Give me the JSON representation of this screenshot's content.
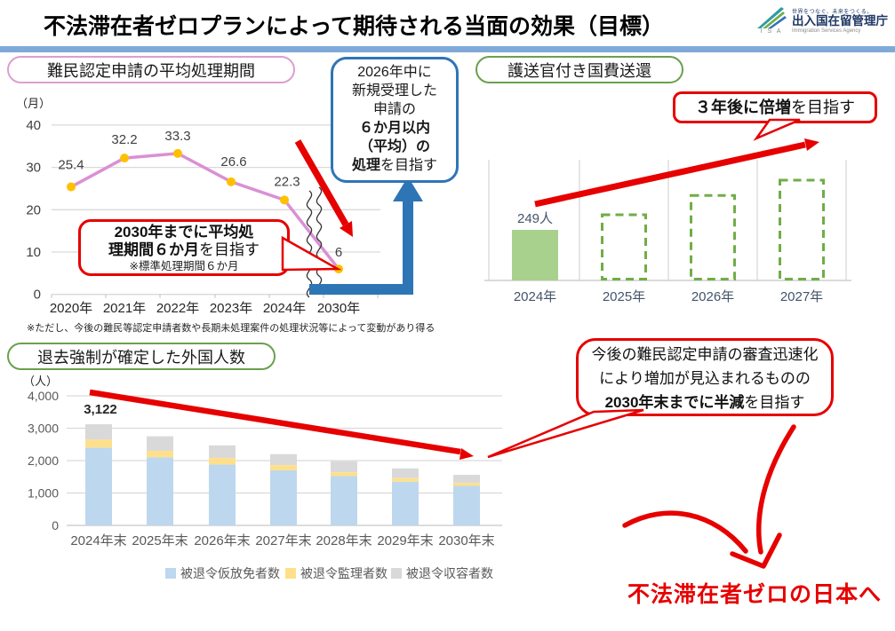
{
  "colors": {
    "accent_red": "#e60000",
    "accent_blue": "#2e75b6",
    "divider_blue": "#7fa9d8",
    "pink_border": "#dd9ed0",
    "green_border": "#6aa04e",
    "line_pink": "#da90d5",
    "marker_orange": "#ffc000",
    "bar_green": "#a9d18e",
    "bar_green_border": "#70ad47",
    "stack_blue": "#bdd7ee",
    "stack_yellow": "#ffe08a",
    "stack_gray": "#d9d9d9",
    "label_navy": "#44546a"
  },
  "header": {
    "title": "不法滞在者ゼロプランによって期待される当面の効果（目標）",
    "logo": {
      "isa": "I S A",
      "tagline": "世界をつなぐ、未来をつくる。",
      "agency_ja": "出入国在留管理庁",
      "agency_en": "Immigration Services Agency"
    }
  },
  "refugee": {
    "header": "難民認定申請の平均処理期間",
    "unit": "（月）",
    "note": "※ただし、今後の難民等認定申請者数や長期未処理案件の処理状況等によって変動があり得る",
    "callout": {
      "line1_bold": "2030年までに平均処",
      "line2_bold": "理期間６か月",
      "line2_rest": "を目指す",
      "subnote": "※標準処理期間６か月"
    },
    "bluebox": {
      "l1": "2026年中に",
      "l2": "新規受理した",
      "l3": "申請の",
      "l4_bold": "６か月以内",
      "l5_bold": "（平均）の",
      "l6_bold": "処理",
      "l6_rest": "を目指す"
    }
  },
  "escort": {
    "header": "護送官付き国費送還",
    "callout_bold": "３年後に倍増",
    "callout_rest": "を目指す"
  },
  "deport": {
    "header": "退去強制が確定した外国人数",
    "unit": "（人）"
  },
  "outro": {
    "bubble_l1": "今後の難民認定申請の審査迅速化",
    "bubble_l2": "により増加が見込まれるものの",
    "bubble_l3_bold": "2030年末までに半減",
    "bubble_l3_rest": "を目指す",
    "final": "不法滞在者ゼロの日本へ"
  },
  "chart_data": [
    {
      "type": "line",
      "title": "難民認定申請の平均処理期間",
      "ylabel": "（月）",
      "categories": [
        "2020年",
        "2021年",
        "2022年",
        "2023年",
        "2024年",
        "2030年"
      ],
      "values": [
        25.4,
        32.2,
        33.3,
        26.6,
        22.3,
        6
      ],
      "value_labels": [
        "25.4",
        "32.2",
        "33.3",
        "26.6",
        "22.3",
        "6"
      ],
      "y_ticks": [
        40,
        30,
        20,
        10,
        0
      ],
      "ylim": [
        0,
        40
      ],
      "axis_break_between": [
        "2024年",
        "2030年"
      ],
      "line_color": "#da90d5",
      "marker_color": "#ffc000"
    },
    {
      "type": "bar",
      "title": "護送官付き国費送還",
      "categories": [
        "2024年",
        "2025年",
        "2026年",
        "2027年"
      ],
      "values": [
        249,
        330,
        425,
        500
      ],
      "value_labels": [
        "249人",
        "",
        "",
        ""
      ],
      "bar_styles": [
        "solid",
        "dashed",
        "dashed",
        "dashed"
      ],
      "bar_color": "#a9d18e",
      "bar_border_color": "#70ad47",
      "values_note": "2025-2027 are unlabeled dashed target outlines; heights estimated (double by 2027)"
    },
    {
      "type": "bar",
      "stacked": true,
      "title": "退去強制が確定した外国人数",
      "ylabel": "（人）",
      "categories": [
        "2024年末",
        "2025年末",
        "2026年末",
        "2027年末",
        "2028年末",
        "2029年末",
        "2030年末"
      ],
      "series": [
        {
          "name": "被退令仮放免者数",
          "color": "#bdd7ee",
          "values": [
            2400,
            2100,
            1880,
            1700,
            1520,
            1350,
            1220
          ]
        },
        {
          "name": "被退令監理者数",
          "color": "#ffe08a",
          "values": [
            250,
            200,
            200,
            160,
            120,
            110,
            90
          ]
        },
        {
          "name": "被退令収容者数",
          "color": "#d9d9d9",
          "values": [
            472,
            450,
            390,
            340,
            340,
            300,
            250
          ]
        }
      ],
      "totals": [
        3122,
        2750,
        2470,
        2200,
        1980,
        1760,
        1560
      ],
      "annotation": "3,122",
      "y_ticks": [
        4000,
        3000,
        2000,
        1000,
        0
      ],
      "y_tick_labels": [
        "4,000",
        "3,000",
        "2,000",
        "1,000",
        "0"
      ],
      "ylim": [
        0,
        4000
      ],
      "values_note": "only first total (3,122) labeled; stack splits estimated from bar heights"
    }
  ]
}
